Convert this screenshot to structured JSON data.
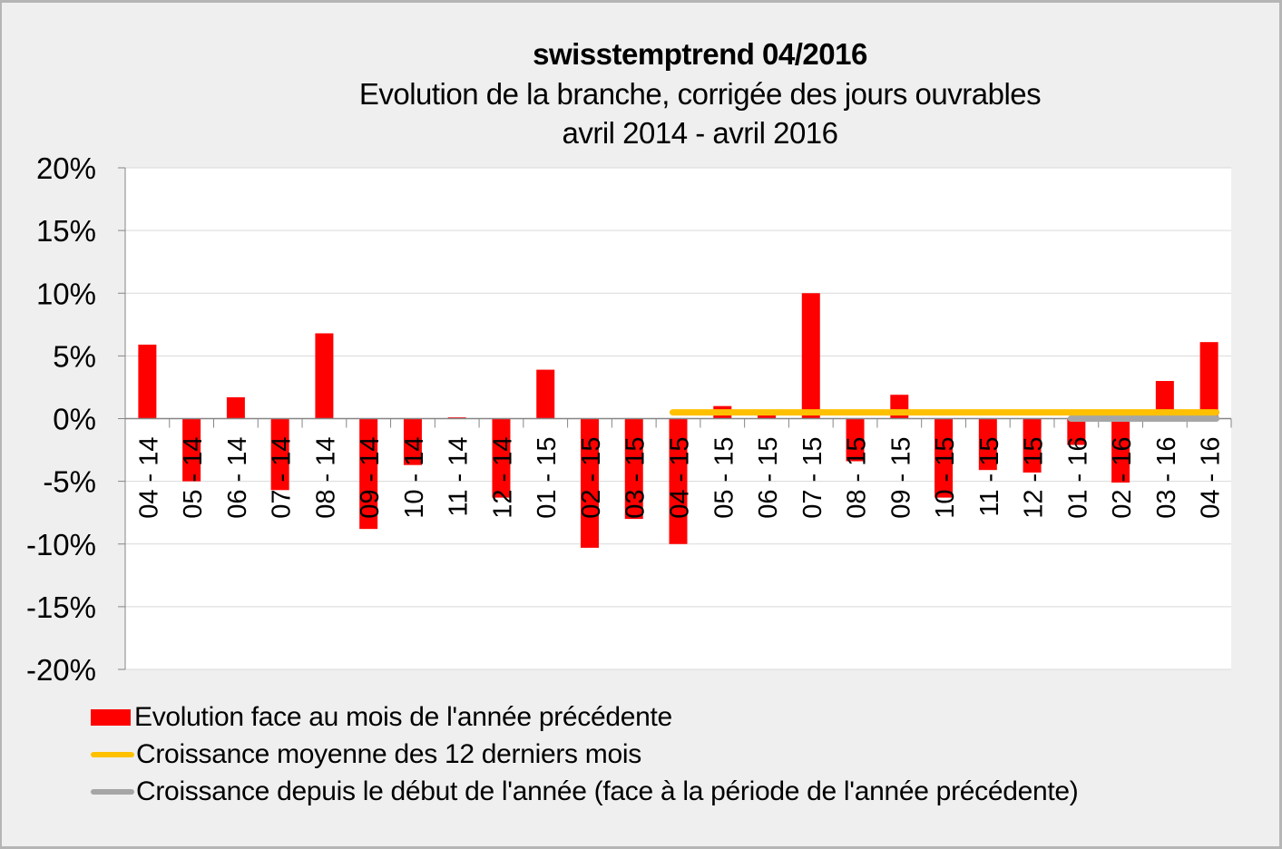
{
  "title": {
    "line1": "swisstemptrend 04/2016",
    "line2": "Evolution de la branche, corrigée des jours ouvrables",
    "line3": "avril 2014 - avril 2016"
  },
  "colors": {
    "bars": "#ff0000",
    "avg12": "#ffc000",
    "ytd": "#a6a6a6",
    "grid": "#d9d9d9",
    "axis": "#868686",
    "plot_bg": "#ffffff",
    "background": "#efefef"
  },
  "legend": {
    "items": [
      {
        "label": "Evolution face au mois de l'année précédente",
        "type": "bar",
        "color": "#ff0000"
      },
      {
        "label": "Croissance moyenne des 12 derniers mois",
        "type": "line",
        "color": "#ffc000"
      },
      {
        "label": "Croissance depuis le début de l'année (face à la période de l'année précédente)",
        "type": "line",
        "color": "#a6a6a6"
      }
    ]
  },
  "chart_data": {
    "type": "bar",
    "title": "swisstemptrend 04/2016 — Evolution de la branche, corrigée des jours ouvrables, avril 2014 - avril 2016",
    "xlabel": "",
    "ylabel": "",
    "ylim": [
      -20,
      20
    ],
    "yticks": [
      "20%",
      "15%",
      "10%",
      "5%",
      "0%",
      "-5%",
      "-10%",
      "-15%",
      "-20%"
    ],
    "ytick_values": [
      20,
      15,
      10,
      5,
      0,
      -5,
      -10,
      -15,
      -20
    ],
    "grid": true,
    "legend_position": "bottom",
    "categories": [
      "04 - 14",
      "05 - 14",
      "06 - 14",
      "07 - 14",
      "08 - 14",
      "09 - 14",
      "10 - 14",
      "11 - 14",
      "12 - 14",
      "01 - 15",
      "02 - 15",
      "03 - 15",
      "04 - 15",
      "05 - 15",
      "06 - 15",
      "07 - 15",
      "08 - 15",
      "09 - 15",
      "10 - 15",
      "11 - 15",
      "12 - 15",
      "01 - 16",
      "02 - 16",
      "03 - 16",
      "04 - 16"
    ],
    "series": [
      {
        "name": "Evolution face au mois de l'année précédente",
        "type": "bar",
        "values": [
          5.9,
          -5.0,
          1.7,
          -5.7,
          6.8,
          -8.8,
          -3.7,
          0.1,
          -6.3,
          3.9,
          -10.3,
          -8.0,
          -10.0,
          1.0,
          0.4,
          10.0,
          -3.4,
          1.9,
          -6.3,
          -4.1,
          -4.3,
          -2.1,
          -5.1,
          3.0,
          6.1
        ]
      },
      {
        "name": "Croissance moyenne des 12 derniers mois",
        "type": "line",
        "start_index": 12,
        "end_index": 24,
        "values": [
          0.5,
          0.5,
          0.5,
          0.5,
          0.5,
          0.5,
          0.5,
          0.5,
          0.5,
          0.5,
          0.5,
          0.5,
          0.5
        ]
      },
      {
        "name": "Croissance depuis le début de l'année (face à la période de l'année précédente)",
        "type": "line",
        "start_index": 21,
        "end_index": 24,
        "values": [
          0.0,
          0.0,
          0.0,
          0.0
        ]
      }
    ]
  }
}
